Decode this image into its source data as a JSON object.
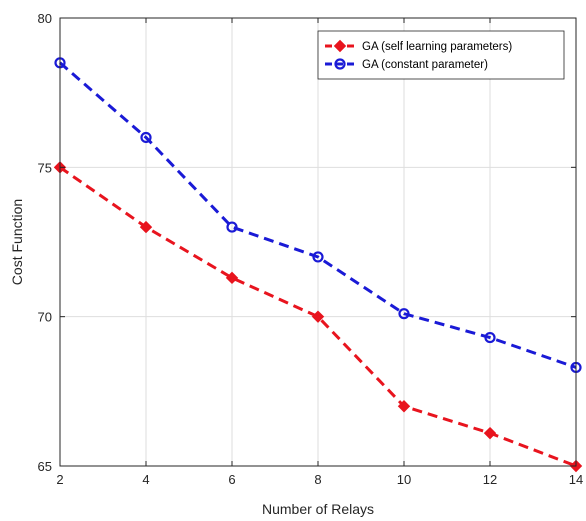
{
  "chart_data": {
    "type": "line",
    "title": "",
    "xlabel": "Number of Relays",
    "ylabel": "Cost Function",
    "x": [
      2,
      4,
      6,
      8,
      10,
      12,
      14
    ],
    "xlim": [
      2,
      14
    ],
    "ylim": [
      65,
      80
    ],
    "x_ticks": [
      "2",
      "4",
      "6",
      "8",
      "10",
      "12",
      "14"
    ],
    "y_ticks": [
      "65",
      "70",
      "75",
      "80"
    ],
    "grid": true,
    "legend_position": "top-right",
    "series": [
      {
        "name": "GA (self learning parameters)",
        "values": [
          75,
          73,
          71.3,
          70,
          67,
          66.1,
          65
        ],
        "color": "#e8141e",
        "line_style": "dashed",
        "marker": "diamond-filled"
      },
      {
        "name": "GA (constant parameter)",
        "values": [
          78.5,
          76,
          73,
          72,
          70.1,
          69.3,
          68.3
        ],
        "color": "#1a1ad6",
        "line_style": "dashed",
        "marker": "circle-open"
      }
    ]
  }
}
